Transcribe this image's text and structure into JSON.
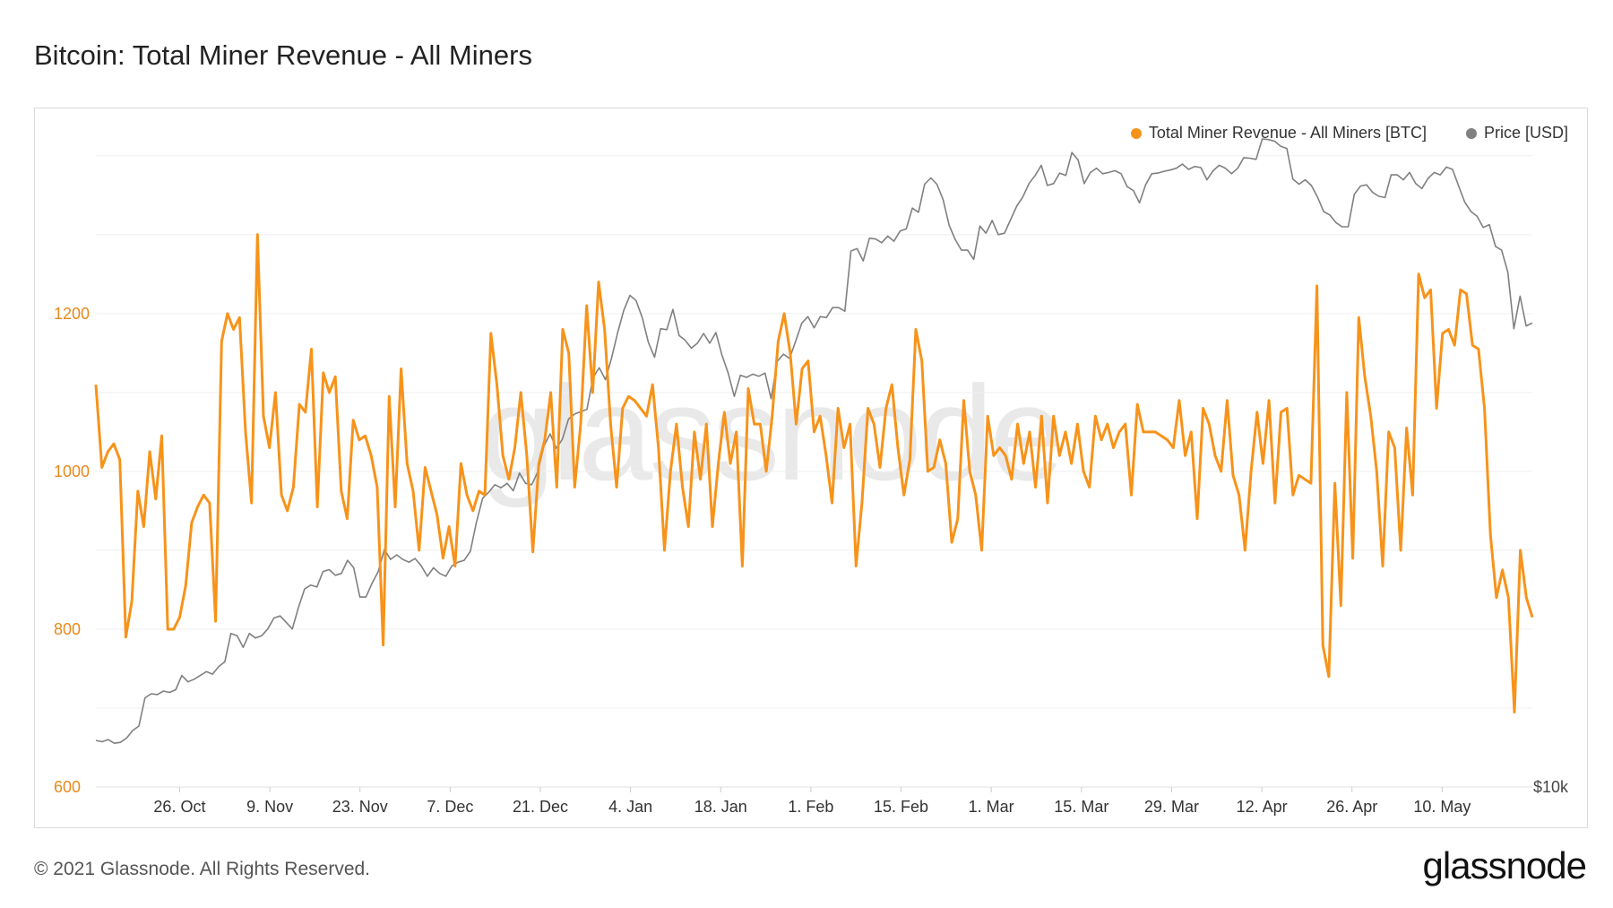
{
  "title": "Bitcoin: Total Miner Revenue - All Miners",
  "footer": "© 2021 Glassnode. All Rights Reserved.",
  "brand": "glassnode",
  "watermark": "glassnode",
  "colors": {
    "revenue": "#f7931a",
    "price": "#808080",
    "left_axis": "#e8891c",
    "grid": "#efefef"
  },
  "legend": [
    {
      "label": "Total Miner Revenue - All Miners [BTC]",
      "color": "#f7931a"
    },
    {
      "label": "Price [USD]",
      "color": "#808080"
    }
  ],
  "chart_data": {
    "type": "line",
    "x_ticks": [
      "26. Oct",
      "9. Nov",
      "23. Nov",
      "7. Dec",
      "21. Dec",
      "4. Jan",
      "18. Jan",
      "1. Feb",
      "15. Feb",
      "1. Mar",
      "15. Mar",
      "29. Mar",
      "12. Apr",
      "26. Apr",
      "10. May"
    ],
    "x_range": [
      "2020-10-13",
      "2021-05-24"
    ],
    "y_left": {
      "ticks": [
        600,
        800,
        1000,
        1200
      ],
      "range": [
        600,
        1410
      ]
    },
    "y_right": {
      "ticks_visible": [
        "$10k"
      ],
      "scale": "log",
      "range": [
        10000,
        62000
      ]
    },
    "legend_position": "top-right",
    "grid": true,
    "series": [
      {
        "name": "Total Miner Revenue - All Miners [BTC]",
        "axis": "left",
        "start": "2020-10-13",
        "values": [
          1110,
          1005,
          1025,
          1035,
          1015,
          790,
          835,
          975,
          930,
          1025,
          965,
          1045,
          800,
          800,
          815,
          855,
          935,
          955,
          970,
          960,
          810,
          1165,
          1200,
          1180,
          1195,
          1050,
          960,
          1300,
          1070,
          1030,
          1100,
          970,
          950,
          980,
          1085,
          1075,
          1155,
          955,
          1125,
          1100,
          1120,
          975,
          940,
          1065,
          1040,
          1045,
          1020,
          980,
          780,
          1095,
          955,
          1130,
          1010,
          975,
          900,
          1005,
          975,
          945,
          890,
          930,
          880,
          1010,
          970,
          950,
          975,
          970,
          1175,
          1110,
          1020,
          990,
          1030,
          1100,
          1020,
          898,
          1010,
          1040,
          1100,
          980,
          1180,
          1150,
          980,
          1060,
          1210,
          1100,
          1240,
          1180,
          1060,
          980,
          1080,
          1095,
          1090,
          1080,
          1070,
          1110,
          1030,
          900,
          1000,
          1060,
          980,
          930,
          1050,
          990,
          1060,
          930,
          1010,
          1075,
          1010,
          1050,
          880,
          1105,
          1060,
          1060,
          1000,
          1070,
          1165,
          1200,
          1150,
          1060,
          1130,
          1140,
          1050,
          1070,
          1020,
          960,
          1080,
          1030,
          1060,
          880,
          960,
          1080,
          1060,
          1005,
          1080,
          1110,
          1030,
          970,
          1015,
          1180,
          1140,
          1000,
          1005,
          1040,
          1010,
          910,
          940,
          1090,
          1000,
          970,
          900,
          1070,
          1020,
          1030,
          1020,
          990,
          1060,
          1010,
          1050,
          980,
          1070,
          960,
          1070,
          1020,
          1050,
          1010,
          1060,
          1000,
          980,
          1070,
          1040,
          1060,
          1030,
          1050,
          1060,
          970,
          1085,
          1050,
          1050,
          1050,
          1045,
          1040,
          1030,
          1090,
          1020,
          1050,
          940,
          1080,
          1060,
          1020,
          1000,
          1090,
          995,
          970,
          900,
          1000,
          1075,
          1010,
          1090,
          960,
          1075,
          1080,
          970,
          995,
          990,
          985,
          1235,
          780,
          740,
          985,
          830,
          1100,
          890,
          1195,
          1120,
          1070,
          1000,
          880,
          1050,
          1030,
          900,
          1055,
          970,
          1250,
          1220,
          1230,
          1080,
          1175,
          1180,
          1160,
          1230,
          1225,
          1160,
          1155,
          1080,
          920,
          840,
          875,
          840,
          695,
          900,
          840,
          815
        ]
      },
      {
        "name": "Price [USD]",
        "axis": "right",
        "start": "2020-10-13",
        "values": [
          11420,
          11380,
          11450,
          11330,
          11360,
          11500,
          11750,
          11900,
          12900,
          13050,
          13020,
          13150,
          13100,
          13200,
          13750,
          13500,
          13600,
          13750,
          13900,
          13800,
          14100,
          14300,
          15500,
          15400,
          14900,
          15500,
          15300,
          15400,
          15700,
          16200,
          16300,
          16000,
          15700,
          16700,
          17600,
          17800,
          17700,
          18500,
          18600,
          18300,
          18400,
          19100,
          18700,
          17200,
          17200,
          17900,
          18500,
          19700,
          19150,
          19400,
          19150,
          19000,
          19200,
          18800,
          18250,
          18700,
          18400,
          18250,
          18800,
          19000,
          19100,
          19600,
          21300,
          22800,
          23200,
          23700,
          23500,
          23800,
          23300,
          24500,
          23800,
          23700,
          24600,
          26500,
          27400,
          26300,
          27000,
          28600,
          29000,
          29200,
          29400,
          32200,
          33100,
          32000,
          34000,
          36600,
          39000,
          40700,
          40100,
          38200,
          35600,
          34100,
          37000,
          36900,
          39100,
          36300,
          35800,
          35000,
          35500,
          36500,
          35500,
          36600,
          34300,
          32600,
          30500,
          32400,
          32200,
          32500,
          32300,
          32600,
          30300,
          33700,
          34400,
          34000,
          35700,
          37600,
          38300,
          37100,
          38300,
          38200,
          39300,
          39300,
          38900,
          46200,
          46500,
          44900,
          47900,
          47800,
          47300,
          48200,
          47500,
          48900,
          49200,
          52200,
          51600,
          55900,
          56900,
          55900,
          53500,
          49700,
          47700,
          46300,
          46300,
          45100,
          49600,
          48600,
          50400,
          48400,
          48600,
          50500,
          52500,
          53900,
          56000,
          57300,
          59000,
          55700,
          56000,
          57700,
          57300,
          61200,
          59900,
          56000,
          57800,
          58500,
          57600,
          57800,
          58100,
          57600,
          55500,
          54900,
          53000,
          55800,
          57600,
          57700,
          58000,
          58200,
          58500,
          59200,
          58300,
          58800,
          58600,
          56600,
          58100,
          59000,
          58500,
          57600,
          58500,
          60300,
          60200,
          60000,
          63600,
          63500,
          63200,
          62300,
          61900,
          56700,
          55900,
          56600,
          55700,
          53900,
          51700,
          51200,
          50100,
          49500,
          49500,
          54300,
          55600,
          55800,
          54600,
          54000,
          53800,
          57400,
          57400,
          56600,
          57800,
          56000,
          55200,
          56800,
          57800,
          57400,
          58700,
          58300,
          55600,
          53100,
          51700,
          51000,
          49400,
          49800,
          46800,
          46300,
          43500,
          37000,
          40600,
          37300,
          37600
        ]
      }
    ]
  }
}
